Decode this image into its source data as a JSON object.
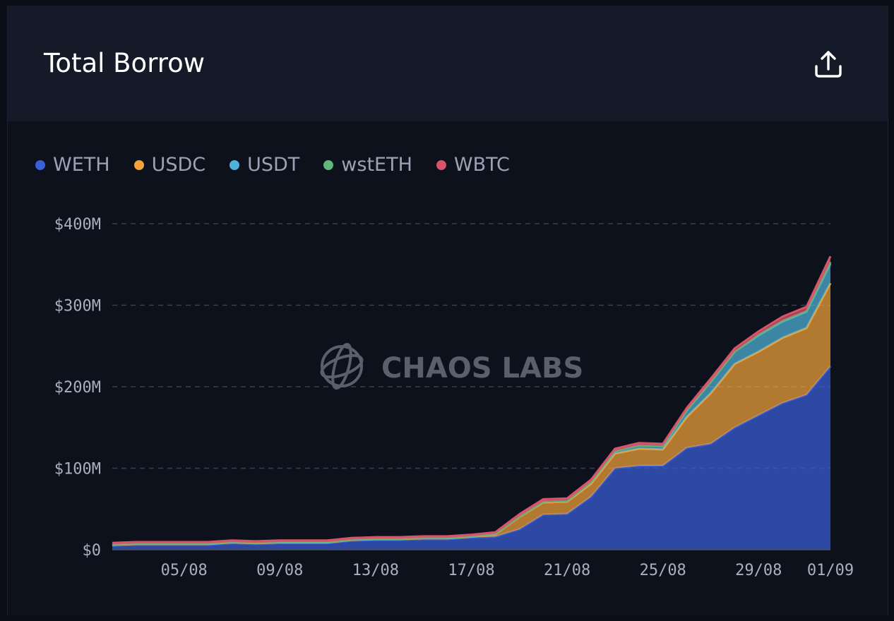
{
  "card": {
    "title": "Total Borrow",
    "export_icon": "share-upload-icon"
  },
  "watermark": {
    "text": "CHAOS LABS",
    "icon": "chaos-labs-logo-icon"
  },
  "colors": {
    "WETH": "#3a5fd8",
    "USDC": "#f2a33a",
    "USDT": "#4fb3d9",
    "wstETH": "#5fb878",
    "WBTC": "#d9536a"
  },
  "chart_data": {
    "type": "area",
    "stacked": true,
    "x": [
      "02/08",
      "03/08",
      "04/08",
      "05/08",
      "06/08",
      "07/08",
      "08/08",
      "09/08",
      "10/08",
      "11/08",
      "12/08",
      "13/08",
      "14/08",
      "15/08",
      "16/08",
      "17/08",
      "18/08",
      "19/08",
      "20/08",
      "21/08",
      "22/08",
      "23/08",
      "24/08",
      "25/08",
      "26/08",
      "27/08",
      "28/08",
      "29/08",
      "30/08",
      "31/08",
      "01/09"
    ],
    "x_tick_labels": [
      "05/08",
      "09/08",
      "13/08",
      "17/08",
      "21/08",
      "25/08",
      "29/08",
      "01/09"
    ],
    "y_tick_labels": [
      "$0",
      "$100M",
      "$200M",
      "$300M",
      "$400M"
    ],
    "ylim": [
      0,
      400
    ],
    "y_unit": "$M",
    "grid": true,
    "legend_position": "top-left",
    "series": [
      {
        "name": "WETH",
        "values": [
          5,
          6,
          6,
          6,
          6,
          8,
          7,
          8,
          8,
          8,
          11,
          12,
          12,
          13,
          13,
          15,
          16,
          25,
          43,
          44,
          65,
          100,
          103,
          103,
          125,
          130,
          150,
          165,
          180,
          190,
          225
        ]
      },
      {
        "name": "USDC",
        "values": [
          1,
          1,
          1,
          1,
          1,
          1,
          1,
          1,
          1,
          1,
          1,
          1,
          1,
          1,
          1,
          1,
          3,
          15,
          15,
          15,
          16,
          18,
          21,
          20,
          38,
          62,
          78,
          78,
          80,
          82,
          102
        ]
      },
      {
        "name": "USDT",
        "values": [
          0.5,
          0.5,
          0.5,
          0.5,
          0.5,
          0.5,
          0.5,
          0.5,
          0.5,
          0.5,
          0.5,
          0.5,
          0.5,
          0.5,
          0.5,
          0.5,
          0.5,
          0.5,
          1,
          1,
          2,
          3,
          4,
          4,
          8,
          14,
          15,
          20,
          20,
          20,
          24
        ]
      },
      {
        "name": "wstETH",
        "values": [
          0,
          0,
          0,
          0,
          0,
          0,
          0,
          0,
          0,
          0,
          0,
          0,
          0,
          0,
          0,
          0,
          0,
          0,
          0,
          0,
          0,
          0,
          0,
          0,
          0,
          0,
          0,
          1,
          1,
          1,
          2
        ]
      },
      {
        "name": "WBTC",
        "values": [
          2,
          2,
          2,
          2,
          2,
          2,
          2,
          2,
          2,
          2,
          2,
          2,
          2,
          2,
          2,
          2,
          2,
          3,
          3,
          3,
          3,
          3,
          3,
          3,
          3,
          4,
          4,
          4,
          5,
          5,
          7
        ]
      }
    ]
  }
}
